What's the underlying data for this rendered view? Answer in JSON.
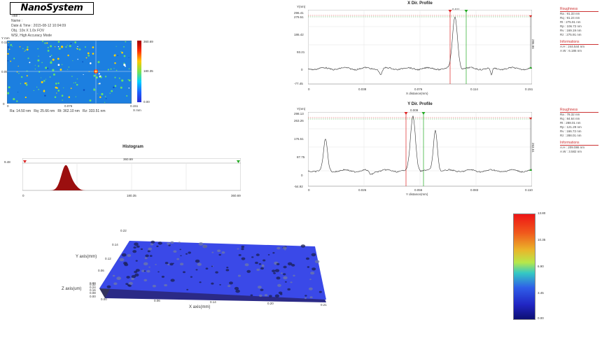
{
  "header": {
    "logo": "NanoSystem",
    "meta": [
      "Title :",
      "Name :",
      "Date & Time : 2015-08-12 10:04:09",
      "Obj. :10x X 1.0x FOV",
      "WSI, High Accuracy Mode"
    ]
  },
  "map2d": {
    "axis_label_y": "Y mm",
    "axis_label_x": "X mm",
    "y_ticks": [
      "0.110",
      "0.055",
      "0"
    ],
    "x_ticks": [
      "0",
      "0.076",
      "0.151"
    ],
    "colorbar_ticks": [
      "360.69",
      "180.35",
      "0.00"
    ],
    "stats": [
      "Ra: 14.50 nm",
      "Rq: 25.66 nm",
      "Rt: 362.10 nm",
      "Rz: 333.51 nm"
    ],
    "colors": {
      "bg": "#1c7fe0",
      "hot": "#ff3300",
      "warm": "#ffd400",
      "cool": "#64e26b"
    }
  },
  "histogram": {
    "title": "Histogram",
    "left_label": "9.48",
    "center_label": "360.69",
    "x_ticks": [
      "0",
      "180.35",
      "360.69"
    ],
    "fill_color": "#9b0f0f"
  },
  "x_profile": {
    "title": "X Dir. Profile",
    "y_unit": "Y(nm)",
    "x_unit": "X distance(mm)",
    "cursor_gap": "0.011",
    "y_ticks": [
      "296.41",
      "279.51",
      "186.42",
      "93.21",
      "0",
      "-77.45"
    ],
    "x_ticks": [
      "0",
      "0.038",
      "0.076",
      "0.114",
      "0.151"
    ],
    "height_label": "286.96",
    "roughness_title": "Roughness",
    "roughness": [
      "Ra : 91.33 nm",
      "Rq : 91.24 nm",
      "Rt : 275.91 nm",
      "Rp : 106.72 nm",
      "Rv : 169.19 nm",
      "Rz : 275.91 nm"
    ],
    "info_title": "Informations",
    "info": [
      "A.H : 244.544 nm",
      "A.W : 6.186 nm"
    ]
  },
  "y_profile": {
    "title": "Y Dir. Profile",
    "y_unit": "Y(nm)",
    "x_unit": "Y distance(mm)",
    "cursor_gap": "0.009",
    "y_ticks": [
      "298.13",
      "263.26",
      "176.51",
      "87.75",
      "0",
      "-54.92"
    ],
    "x_ticks": [
      "0",
      "0.026",
      "0.055",
      "0.083",
      "0.110"
    ],
    "height_label": "263.51",
    "roughness_title": "Roughness",
    "roughness": [
      "Ra : 78.32 nm",
      "Rq : 84.64 nm",
      "Rt : 288.01 nm",
      "Rp : 121.29 nm",
      "Rv : 166.72 nm",
      "Rz : 288.01 nm"
    ],
    "info_title": "Informations",
    "info": [
      "A.H : 209.086 nm",
      "A.W : 3.582 nm"
    ]
  },
  "surface3d": {
    "y_axis_label": "Y axis(mm)",
    "z_axis_label": "Z axis(um)",
    "x_axis_label": "X axis(mm)",
    "y_ticks": [
      "0.22",
      "0.14",
      "0.12",
      "0.06",
      "0.00"
    ],
    "z_ticks": [
      "0.32",
      "0.24",
      "0.16",
      "0.08",
      "0.00"
    ],
    "x_ticks": [
      "0.00",
      "0.06",
      "0.14",
      "0.20",
      "0.21"
    ],
    "surface_color": "#3a49e8"
  },
  "colorbar3d": {
    "ticks": [
      "13.80",
      "10.35",
      "6.90",
      "3.45",
      "0.00"
    ]
  }
}
